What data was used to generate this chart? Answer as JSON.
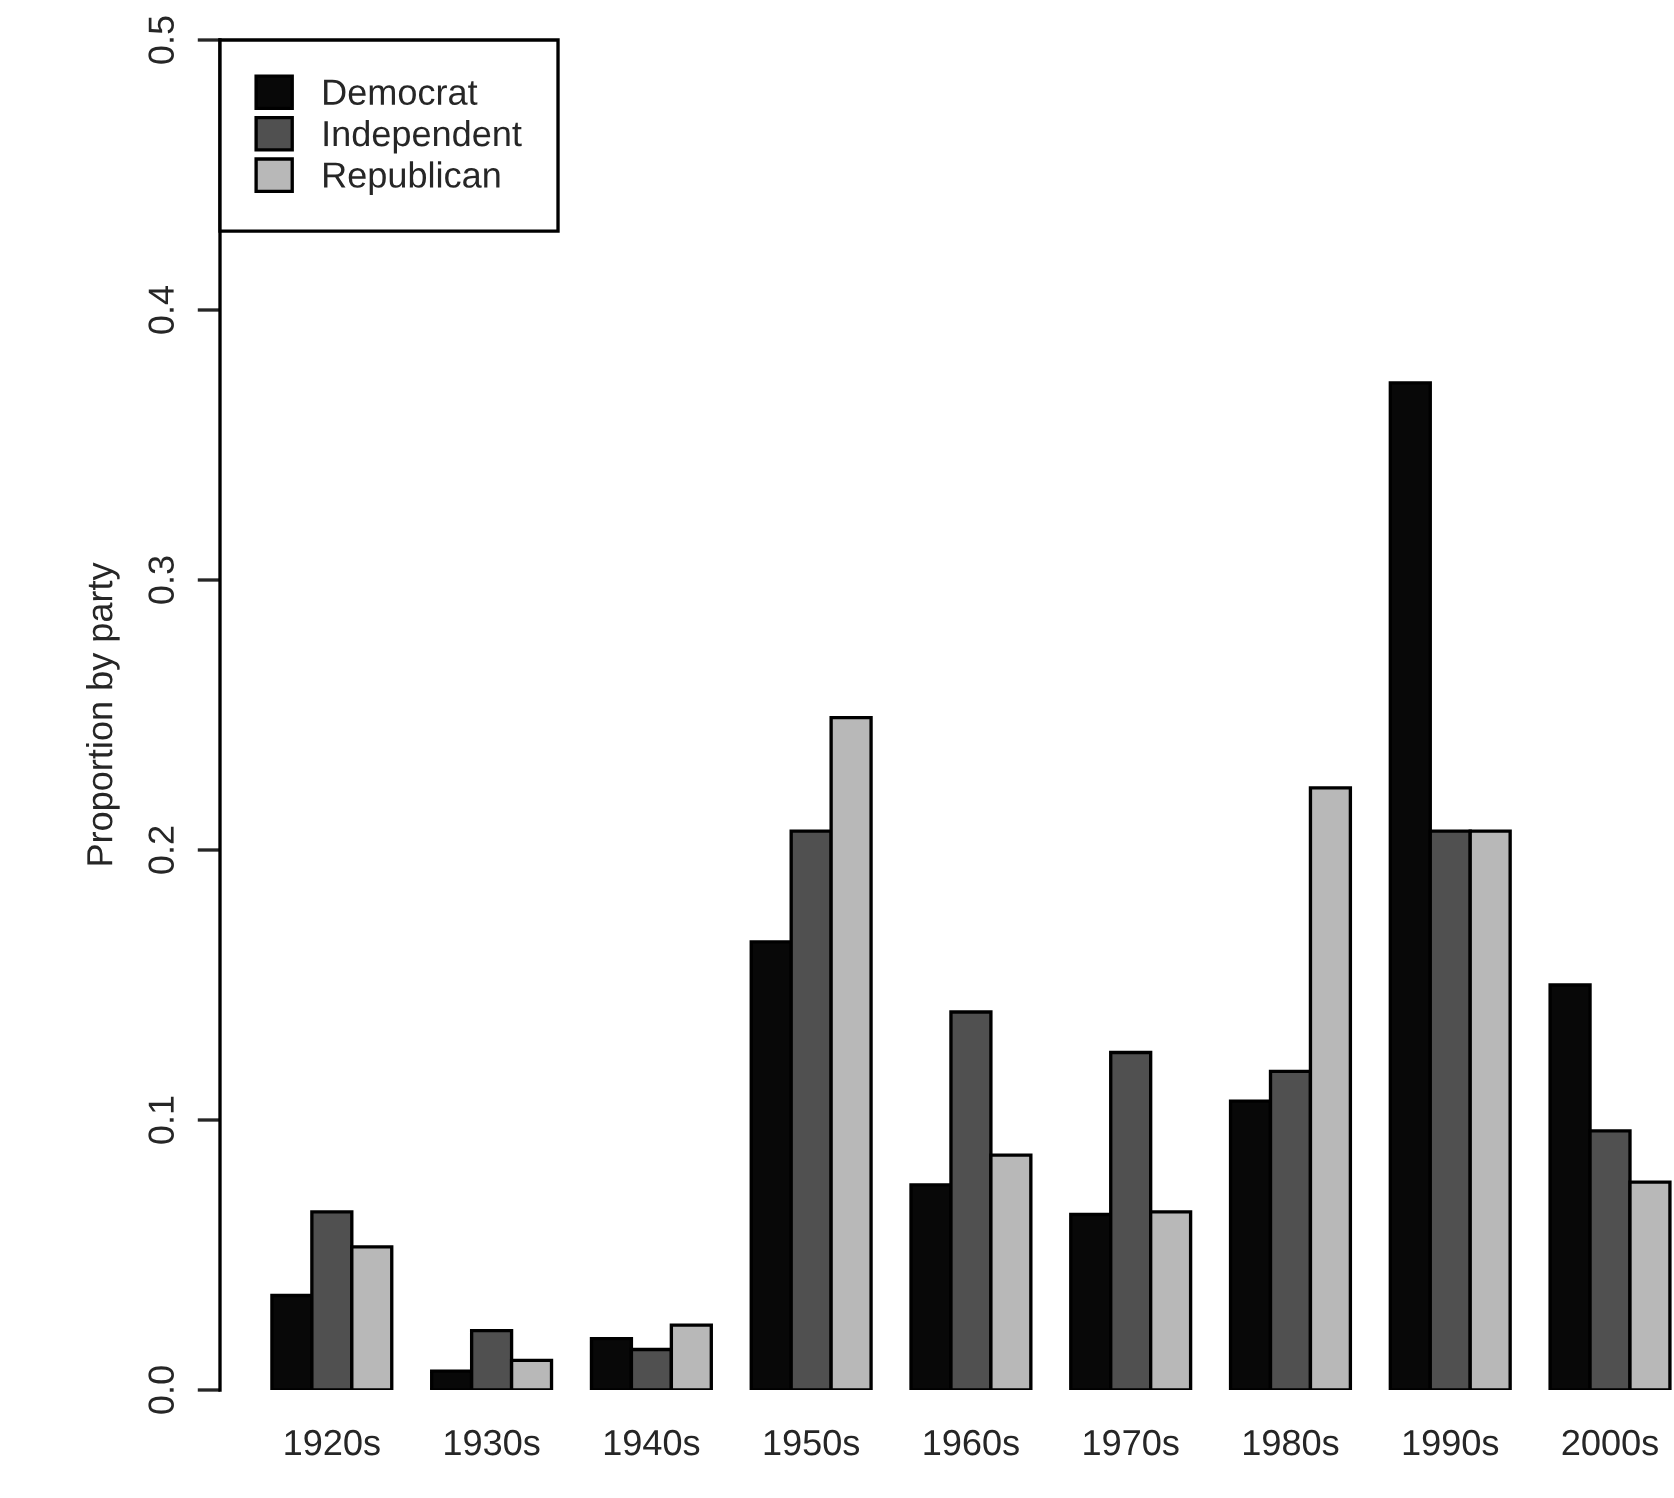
{
  "chart_data": {
    "type": "bar",
    "ylabel": "Proportion by party",
    "categories": [
      "1920s",
      "1930s",
      "1940s",
      "1950s",
      "1960s",
      "1970s",
      "1980s",
      "1990s",
      "2000s"
    ],
    "series": [
      {
        "name": "Democrat",
        "color": "#080808",
        "values": [
          0.035,
          0.007,
          0.019,
          0.166,
          0.076,
          0.065,
          0.107,
          0.373,
          0.15
        ]
      },
      {
        "name": "Independent",
        "color": "#505050",
        "values": [
          0.066,
          0.022,
          0.015,
          0.207,
          0.14,
          0.125,
          0.118,
          0.207,
          0.096
        ]
      },
      {
        "name": "Republican",
        "color": "#b8b8b8",
        "values": [
          0.053,
          0.011,
          0.024,
          0.249,
          0.087,
          0.066,
          0.223,
          0.207,
          0.077
        ]
      }
    ],
    "ylim": [
      0,
      0.5
    ],
    "yticks": [
      {
        "value": 0,
        "label": "0.0"
      },
      0.1,
      0.2,
      0.3,
      0.4,
      0.5
    ],
    "legend": "top left",
    "grid": false
  }
}
